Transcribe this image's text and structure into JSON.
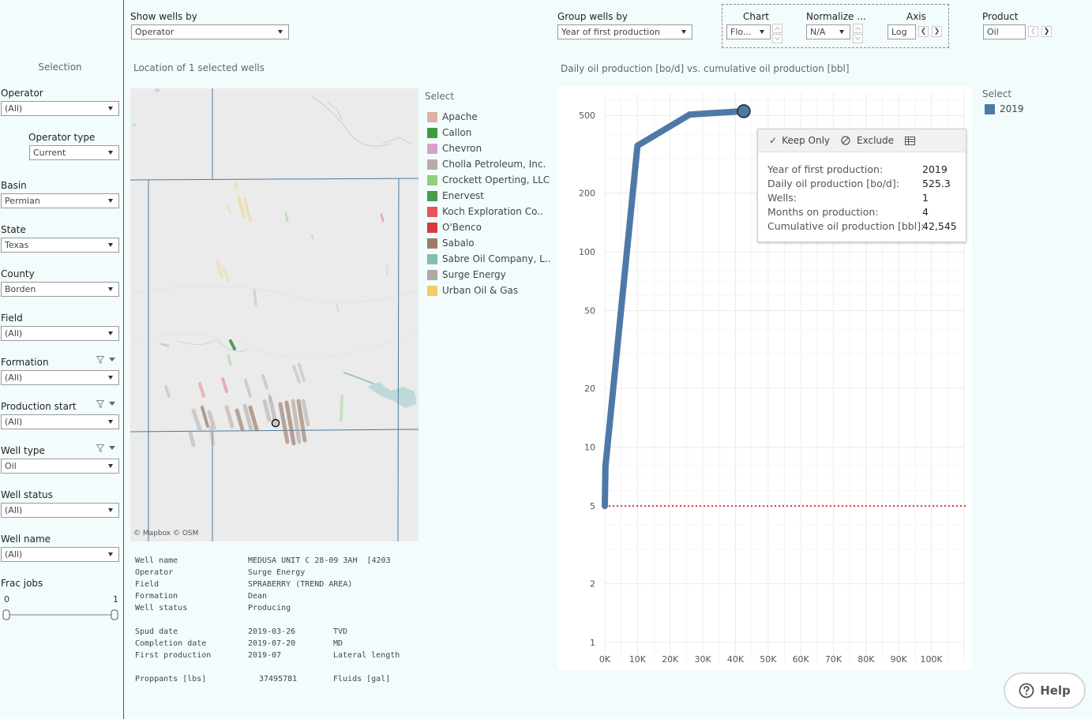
{
  "sidebar": {
    "title": "Selection",
    "filters": [
      {
        "label": "Operator",
        "value": "(All)"
      },
      {
        "label": "Operator type",
        "value": "Current"
      },
      {
        "label": "Basin",
        "value": "Permian"
      },
      {
        "label": "State",
        "value": "Texas"
      },
      {
        "label": "County",
        "value": "Borden"
      },
      {
        "label": "Field",
        "value": "(All)"
      },
      {
        "label": "Formation",
        "value": "(All)"
      },
      {
        "label": "Production start",
        "value": "(All)"
      },
      {
        "label": "Well type",
        "value": "Oil"
      },
      {
        "label": "Well status",
        "value": "(All)"
      },
      {
        "label": "Well name",
        "value": "(All)"
      }
    ],
    "frac_jobs": {
      "label": "Frac jobs",
      "min": "0",
      "max": "1"
    }
  },
  "controls": {
    "show_wells_by": {
      "label": "Show wells by",
      "value": "Operator"
    },
    "group_wells_by": {
      "label": "Group wells by",
      "value": "Year of first production"
    },
    "chart": {
      "label": "Chart",
      "value": "Flo..."
    },
    "normalize": {
      "label": "Normalize ...",
      "value": "N/A"
    },
    "axis": {
      "label": "Axis",
      "value": "Log"
    },
    "product": {
      "label": "Product",
      "value": "Oil"
    }
  },
  "map": {
    "title": "Location of 1 selected wells",
    "attribution": "© Mapbox  © OSM"
  },
  "legend": {
    "title": "Select",
    "items": [
      {
        "label": "Apache",
        "color": "#dcb0a4"
      },
      {
        "label": "Callon",
        "color": "#3f9a40"
      },
      {
        "label": "Chevron",
        "color": "#d4a3c8"
      },
      {
        "label": "Cholla Petroleum, Inc.",
        "color": "#b9aca8"
      },
      {
        "label": "Crockett Operting, LLC",
        "color": "#8fd17f"
      },
      {
        "label": "Enervest",
        "color": "#4a9c4a"
      },
      {
        "label": "Koch Exploration Co..",
        "color": "#e3565b"
      },
      {
        "label": "O'Benco",
        "color": "#d83a3a"
      },
      {
        "label": "Sabalo",
        "color": "#9c7b69"
      },
      {
        "label": "Sabre Oil Company, L..",
        "color": "#86bdb4"
      },
      {
        "label": "Surge Energy",
        "color": "#b0a9a6"
      },
      {
        "label": "Urban Oil & Gas",
        "color": "#f1cd62"
      }
    ]
  },
  "details": {
    "well_name_label": "Well name",
    "well_name": "MEDUSA UNIT C 28-09 3AH  [4203",
    "operator_label": "Operator",
    "operator": "Surge Energy",
    "field_label": "Field",
    "field": "SPRABERRY (TREND AREA)",
    "formation_label": "Formation",
    "formation": "Dean",
    "status_label": "Well status",
    "status": "Producing",
    "spud_label": "Spud date",
    "spud": "2019-03-26",
    "tvd_label": "TVD",
    "completion_label": "Completion date",
    "completion": "2019-07-20",
    "md_label": "MD",
    "first_prod_label": "First production",
    "first_prod": "2019-07",
    "lateral_label": "Lateral length",
    "proppants_label": "Proppants [lbs]",
    "proppants": "37495781",
    "fluids_label": "Fluids [gal]"
  },
  "chart_panel": {
    "title": "Daily oil production [bo/d] vs. cumulative oil production [bbl]"
  },
  "chart_data": {
    "type": "line",
    "title": "Daily oil production [bo/d] vs. cumulative oil production [bbl]",
    "x_scale": "linear",
    "y_scale": "log",
    "xlim": [
      0,
      110000
    ],
    "ylim": [
      0.8,
      650
    ],
    "x_ticks": [
      0,
      10000,
      20000,
      30000,
      40000,
      50000,
      60000,
      70000,
      80000,
      90000,
      100000
    ],
    "x_tick_labels": [
      "0K",
      "10K",
      "20K",
      "30K",
      "40K",
      "50K",
      "60K",
      "70K",
      "80K",
      "90K",
      "100K"
    ],
    "y_ticks": [
      1,
      2,
      5,
      10,
      20,
      50,
      100,
      200,
      500
    ],
    "y_tick_labels": [
      "1",
      "2",
      "5",
      "10",
      "20",
      "50",
      "100",
      "200",
      "500"
    ],
    "grid": true,
    "reference_line": {
      "y": 5,
      "style": "dotted",
      "color": "#e03030"
    },
    "series": [
      {
        "name": "2019",
        "color": "#4e79a7",
        "x": [
          0,
          200,
          10000,
          26000,
          42545
        ],
        "y": [
          5,
          8,
          350,
          505,
          525.3
        ]
      }
    ],
    "highlighted_point": {
      "x": 42545,
      "y": 525.3
    }
  },
  "tooltip": {
    "keep_only": "Keep Only",
    "exclude": "Exclude",
    "rows": [
      {
        "label": "Year of first production:",
        "value": "2019"
      },
      {
        "label": "Daily oil production [bo/d]:",
        "value": "525.3"
      },
      {
        "label": "Wells:",
        "value": "1"
      },
      {
        "label": "Months on production:",
        "value": "4"
      },
      {
        "label": "Cumulative oil production [bbl]:",
        "value": "42,545"
      }
    ]
  },
  "right_legend": {
    "title": "Select",
    "item": "2019",
    "color": "#4e79a7"
  },
  "help": {
    "label": "Help"
  }
}
